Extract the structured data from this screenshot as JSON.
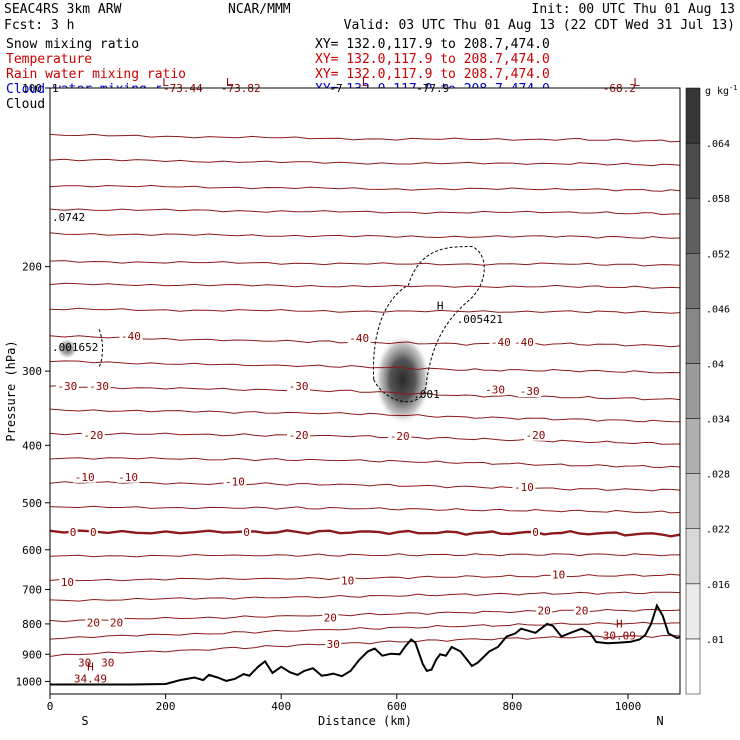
{
  "header": {
    "title": "SEAC4RS  3km ARW",
    "center": "NCAR/MMM",
    "init": "Init: 00 UTC Thu 01 Aug 13",
    "fcst": "Fcst:    3 h",
    "valid": "Valid: 03 UTC Thu 01 Aug 13 (22 CDT Wed 31 Jul 13)",
    "fields": [
      {
        "name": "Snow mixing ratio",
        "xy": "XY= 132.0,117.9 to 208.7,474.0",
        "color": "#000000"
      },
      {
        "name": "Temperature",
        "xy": "XY= 132.0,117.9 to 208.7,474.0",
        "color": "#cc0000"
      },
      {
        "name": "Rain water mixing ratio",
        "xy": "XY= 132.0,117.9 to 208.7,474.0",
        "color": "#cc0000"
      },
      {
        "name": "Cloud water mixing ratio",
        "xy": "XY= 132.0,117.9 to 208.7,474.0",
        "color": "#0000cc"
      },
      {
        "name": "Cloud ice mixing ratio",
        "xy": "XY= 132.0,117.9 to 208.7,474.0",
        "color": "#000000"
      }
    ]
  },
  "chart_data": {
    "type": "contour",
    "xlabel": "Distance (km)",
    "ylabel": "Pressure (hPa)",
    "xlim": [
      0,
      1090
    ],
    "ylim": [
      1050,
      100
    ],
    "y_log_scale": true,
    "x_ticks": [
      0,
      200,
      400,
      600,
      800,
      1000
    ],
    "y_ticks": [
      100,
      200,
      300,
      400,
      500,
      600,
      700,
      800,
      900,
      1000
    ],
    "x_end_labels": {
      "left": "S",
      "right": "N"
    },
    "colorbar": {
      "unit": "g kg",
      "unit_exp": "-1",
      "levels": [
        ".01",
        ".016",
        ".022",
        ".028",
        ".034",
        ".04",
        ".046",
        ".052",
        ".058",
        ".064"
      ]
    },
    "temperature_levels": [
      -70,
      -60,
      -50,
      -40,
      -30,
      -20,
      -10,
      0,
      10,
      20,
      30
    ],
    "temperature_contours": [
      {
        "t": -40,
        "points": [
          [
            0,
            262
          ],
          [
            300,
            266
          ],
          [
            520,
            268
          ],
          [
            720,
            270
          ],
          [
            900,
            270
          ],
          [
            1090,
            272
          ]
        ]
      },
      {
        "t": -30,
        "points": [
          [
            0,
            318
          ],
          [
            300,
            322
          ],
          [
            520,
            324
          ],
          [
            720,
            330
          ],
          [
            900,
            332
          ],
          [
            1090,
            335
          ]
        ]
      },
      {
        "t": -20,
        "points": [
          [
            0,
            382
          ],
          [
            300,
            384
          ],
          [
            520,
            386
          ],
          [
            720,
            390
          ],
          [
            900,
            394
          ],
          [
            1090,
            398
          ]
        ]
      },
      {
        "t": -10,
        "points": [
          [
            0,
            462
          ],
          [
            300,
            464
          ],
          [
            520,
            466
          ],
          [
            720,
            470
          ],
          [
            900,
            474
          ],
          [
            1090,
            476
          ]
        ]
      },
      {
        "t": 0,
        "points": [
          [
            0,
            560
          ],
          [
            300,
            560
          ],
          [
            520,
            560
          ],
          [
            720,
            562
          ],
          [
            900,
            562
          ],
          [
            1090,
            566
          ]
        ]
      },
      {
        "t": 10,
        "points": [
          [
            0,
            675
          ],
          [
            300,
            672
          ],
          [
            520,
            670
          ],
          [
            720,
            666
          ],
          [
            900,
            664
          ],
          [
            1090,
            662
          ]
        ]
      },
      {
        "t": 20,
        "points": [
          [
            0,
            790
          ],
          [
            300,
            780
          ],
          [
            520,
            772
          ],
          [
            720,
            765
          ],
          [
            900,
            760
          ],
          [
            1090,
            758
          ]
        ]
      },
      {
        "t": 30,
        "points": [
          [
            0,
            905
          ],
          [
            300,
            880
          ],
          [
            520,
            862
          ],
          [
            720,
            850
          ],
          [
            900,
            842
          ],
          [
            1090,
            838
          ]
        ]
      }
    ],
    "temperature_labels": [
      {
        "text": "-73.44",
        "x": 230,
        "p": 100
      },
      {
        "text": "-73.82",
        "x": 330,
        "p": 100
      },
      {
        "text": "-68.2",
        "x": 985,
        "p": 100
      },
      {
        "text": "-40",
        "x": 140,
        "p": 262
      },
      {
        "text": "-40",
        "x": 535,
        "p": 264
      },
      {
        "text": "-40",
        "x": 780,
        "p": 268
      },
      {
        "text": "-40",
        "x": 820,
        "p": 268
      },
      {
        "text": "-30",
        "x": 30,
        "p": 318
      },
      {
        "text": "-30",
        "x": 85,
        "p": 318
      },
      {
        "text": "-30",
        "x": 430,
        "p": 318
      },
      {
        "text": "-30",
        "x": 770,
        "p": 322
      },
      {
        "text": "-30",
        "x": 830,
        "p": 324
      },
      {
        "text": "-20",
        "x": 75,
        "p": 384
      },
      {
        "text": "-20",
        "x": 430,
        "p": 384
      },
      {
        "text": "-20",
        "x": 605,
        "p": 386
      },
      {
        "text": "-20",
        "x": 840,
        "p": 384
      },
      {
        "text": "-10",
        "x": 60,
        "p": 452
      },
      {
        "text": "-10",
        "x": 135,
        "p": 452
      },
      {
        "text": "-10",
        "x": 320,
        "p": 460
      },
      {
        "text": "-10",
        "x": 820,
        "p": 470
      },
      {
        "text": "0",
        "x": 40,
        "p": 560
      },
      {
        "text": "0",
        "x": 75,
        "p": 560
      },
      {
        "text": "0",
        "x": 340,
        "p": 560
      },
      {
        "text": "0",
        "x": 840,
        "p": 560
      },
      {
        "text": "10",
        "x": 30,
        "p": 680
      },
      {
        "text": "10",
        "x": 515,
        "p": 676
      },
      {
        "text": "10",
        "x": 880,
        "p": 660
      },
      {
        "text": "20",
        "x": 75,
        "p": 795
      },
      {
        "text": "20",
        "x": 115,
        "p": 795
      },
      {
        "text": "20",
        "x": 485,
        "p": 780
      },
      {
        "text": "20",
        "x": 855,
        "p": 760
      },
      {
        "text": "20",
        "x": 920,
        "p": 760
      },
      {
        "text": "30",
        "x": 60,
        "p": 930
      },
      {
        "text": "30",
        "x": 100,
        "p": 930
      },
      {
        "text": "30",
        "x": 490,
        "p": 865
      }
    ],
    "extrema": [
      {
        "kind": "H",
        "value": "34.49",
        "x": 70,
        "p": 1005
      },
      {
        "kind": "H",
        "value": "30.09",
        "x": 985,
        "p": 850
      }
    ],
    "top_labels": [
      {
        "text": ".0742",
        "x": 0,
        "p": 165
      },
      {
        "text": ".001652",
        "x": 0,
        "p": 273
      },
      {
        "text": ".005421",
        "x": 700,
        "p": 245
      },
      {
        "text": ".001",
        "x": 625,
        "p": 328
      },
      {
        "text": "-77.9",
        "x": 630,
        "p": 100
      },
      {
        "text": "1",
        "x": 0,
        "p": 100
      },
      {
        "text": "-7",
        "x": 480,
        "p": 100
      }
    ],
    "top_marks": [
      {
        "text": "L",
        "x": 200,
        "p": 90
      },
      {
        "text": "L",
        "x": 310,
        "p": 90
      },
      {
        "text": "L",
        "x": 545,
        "p": 90
      },
      {
        "text": "L",
        "x": 1015,
        "p": 90
      }
    ],
    "snow_max": {
      "x": 610,
      "p": 310,
      "peak": 0.064
    },
    "h_marker": {
      "kind": "H",
      "x": 675,
      "p": 236
    },
    "terrain_points": [
      [
        0,
        1012
      ],
      [
        90,
        1012
      ],
      [
        140,
        1012
      ],
      [
        200,
        1010
      ],
      [
        225,
        995
      ],
      [
        250,
        985
      ],
      [
        265,
        995
      ],
      [
        275,
        975
      ],
      [
        290,
        985
      ],
      [
        305,
        998
      ],
      [
        320,
        990
      ],
      [
        335,
        972
      ],
      [
        345,
        978
      ],
      [
        360,
        945
      ],
      [
        372,
        925
      ],
      [
        385,
        968
      ],
      [
        400,
        945
      ],
      [
        415,
        965
      ],
      [
        428,
        975
      ],
      [
        440,
        960
      ],
      [
        455,
        950
      ],
      [
        470,
        978
      ],
      [
        480,
        975
      ],
      [
        490,
        970
      ],
      [
        505,
        980
      ],
      [
        520,
        960
      ],
      [
        535,
        920
      ],
      [
        550,
        890
      ],
      [
        562,
        880
      ],
      [
        575,
        905
      ],
      [
        590,
        898
      ],
      [
        605,
        900
      ],
      [
        615,
        872
      ],
      [
        625,
        850
      ],
      [
        632,
        860
      ],
      [
        645,
        935
      ],
      [
        652,
        960
      ],
      [
        660,
        955
      ],
      [
        668,
        920
      ],
      [
        675,
        900
      ],
      [
        685,
        905
      ],
      [
        695,
        875
      ],
      [
        710,
        890
      ],
      [
        720,
        915
      ],
      [
        730,
        942
      ],
      [
        740,
        930
      ],
      [
        750,
        910
      ],
      [
        760,
        890
      ],
      [
        775,
        875
      ],
      [
        790,
        840
      ],
      [
        805,
        830
      ],
      [
        815,
        815
      ],
      [
        840,
        828
      ],
      [
        860,
        800
      ],
      [
        870,
        806
      ],
      [
        885,
        840
      ],
      [
        905,
        825
      ],
      [
        920,
        815
      ],
      [
        935,
        830
      ],
      [
        945,
        858
      ],
      [
        965,
        862
      ],
      [
        985,
        860
      ],
      [
        1005,
        857
      ],
      [
        1020,
        850
      ],
      [
        1030,
        835
      ],
      [
        1040,
        800
      ],
      [
        1050,
        745
      ],
      [
        1060,
        775
      ],
      [
        1070,
        830
      ],
      [
        1085,
        845
      ],
      [
        1090,
        842
      ]
    ]
  }
}
